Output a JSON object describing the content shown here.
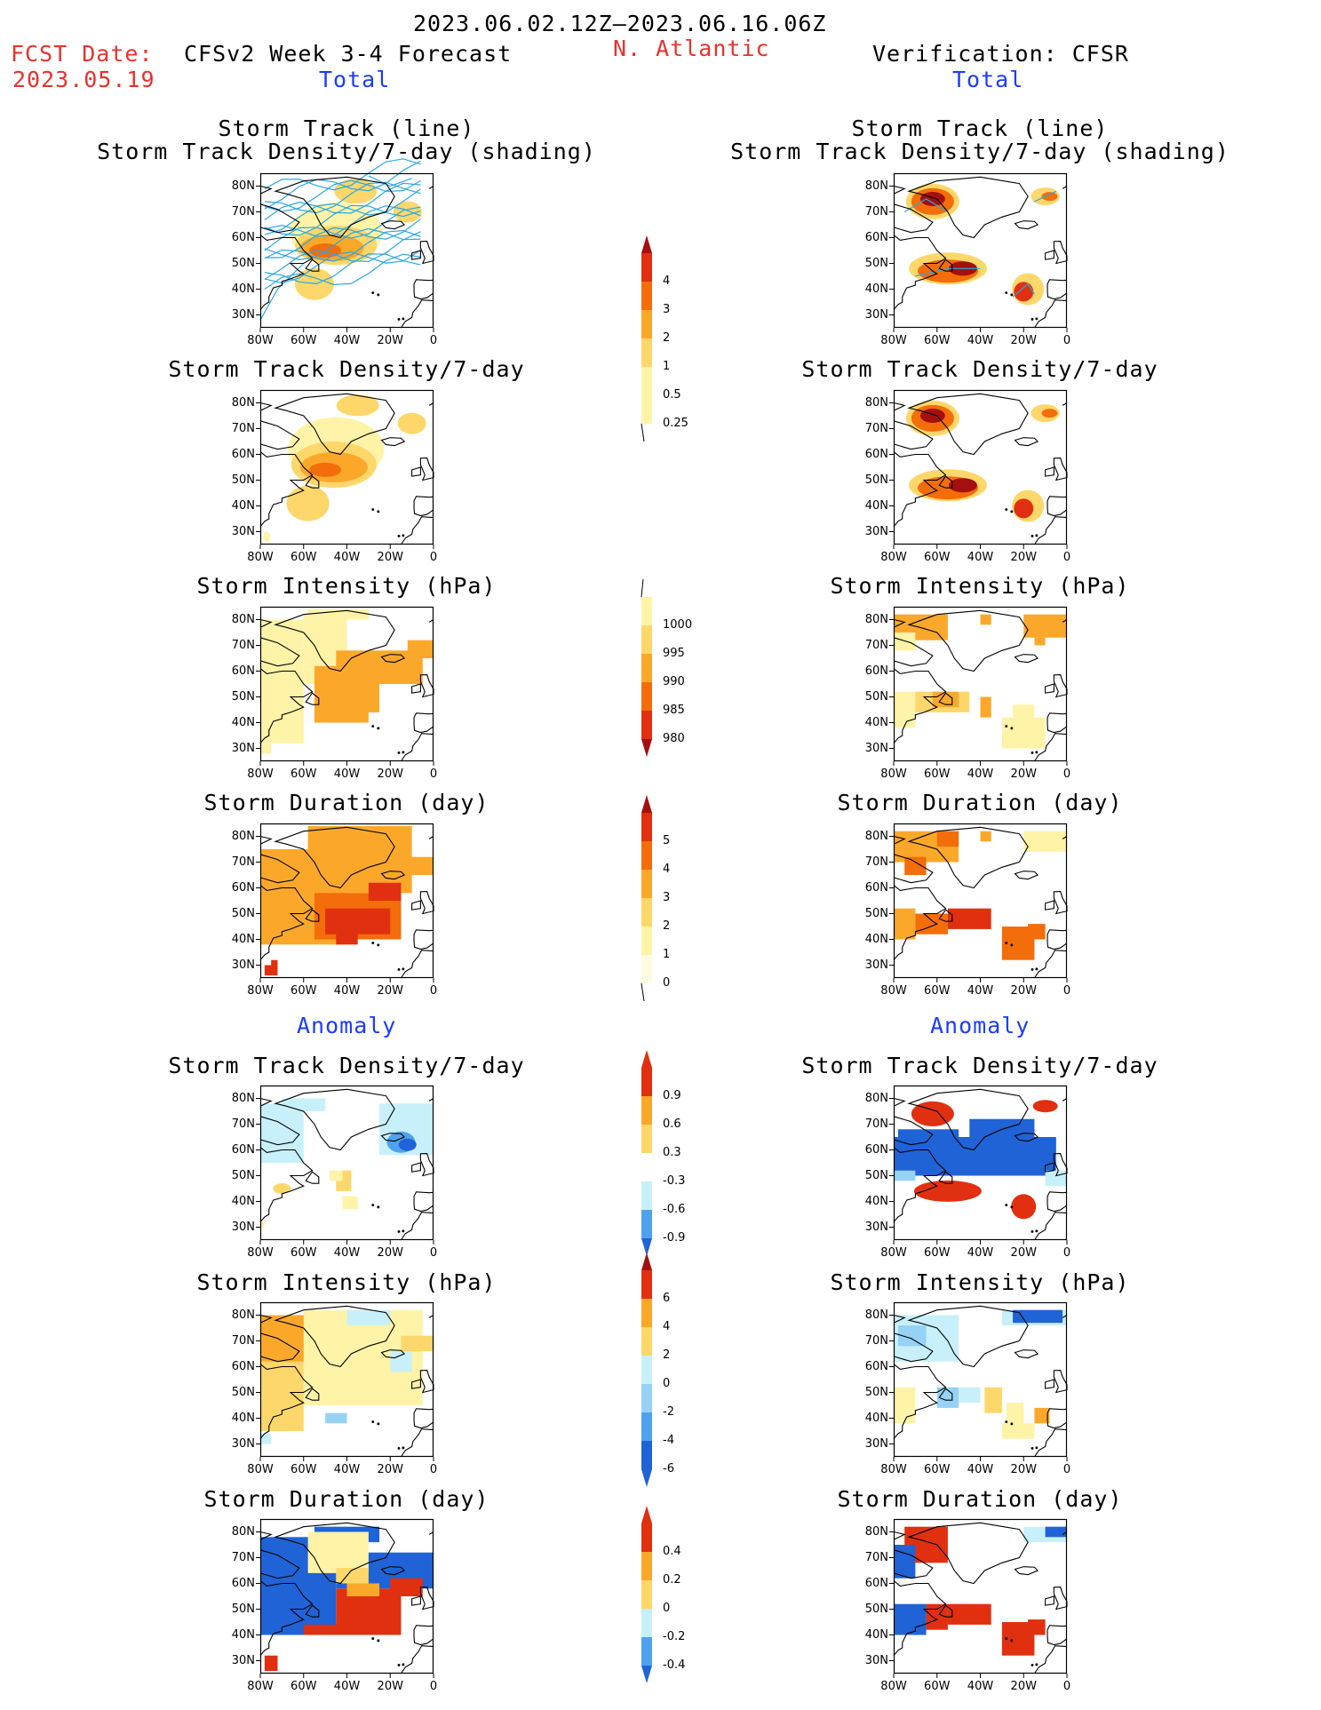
{
  "header": {
    "period": "2023.06.02.12Z–2023.06.16.06Z",
    "fcst_label": "FCST Date:",
    "fcst_date": "2023.05.19",
    "model": "CFSv2 Week 3-4 Forecast",
    "region": "N. Atlantic",
    "verification": "Verification: CFSR"
  },
  "sections": {
    "total": "Total",
    "anomaly": "Anomaly"
  },
  "titles": {
    "track_line": "Storm Track (line)",
    "track_shading": "Storm Track Density/7-day (shading)",
    "density": "Storm Track Density/7-day",
    "intensity": "Storm Intensity (hPa)",
    "duration": "Storm Duration (day)"
  },
  "axes": {
    "lat": [
      "80N",
      "70N",
      "60N",
      "50N",
      "40N",
      "30N"
    ],
    "lon": [
      "80W",
      "60W",
      "40W",
      "20W",
      "0"
    ]
  },
  "colorbars": {
    "density_total": [
      "4",
      "3",
      "2",
      "1",
      "0.5",
      "0.25"
    ],
    "intensity_total": [
      "1000",
      "995",
      "990",
      "985",
      "980"
    ],
    "duration_total": [
      "5",
      "4",
      "3",
      "2",
      "1",
      "0"
    ],
    "density_anom": [
      "0.9",
      "0.6",
      "0.3",
      "-0.3",
      "-0.6",
      "-0.9"
    ],
    "intensity_anom": [
      "6",
      "4",
      "2",
      "0",
      "-2",
      "-4",
      "-6"
    ],
    "duration_anom": [
      "0.4",
      "0.2",
      "0",
      "-0.2",
      "-0.4"
    ]
  },
  "colors": {
    "title_red": "#e8312c",
    "section_blue": "#1a3cff",
    "track_line": "#2aa8e0",
    "warm": [
      "#fff3a8",
      "#fdd76a",
      "#fba82a",
      "#f36d0a",
      "#e03010",
      "#a50f0f"
    ],
    "cool": [
      "#c8f0fa",
      "#96d2f5",
      "#4fa3ee",
      "#1f63d6"
    ]
  }
}
